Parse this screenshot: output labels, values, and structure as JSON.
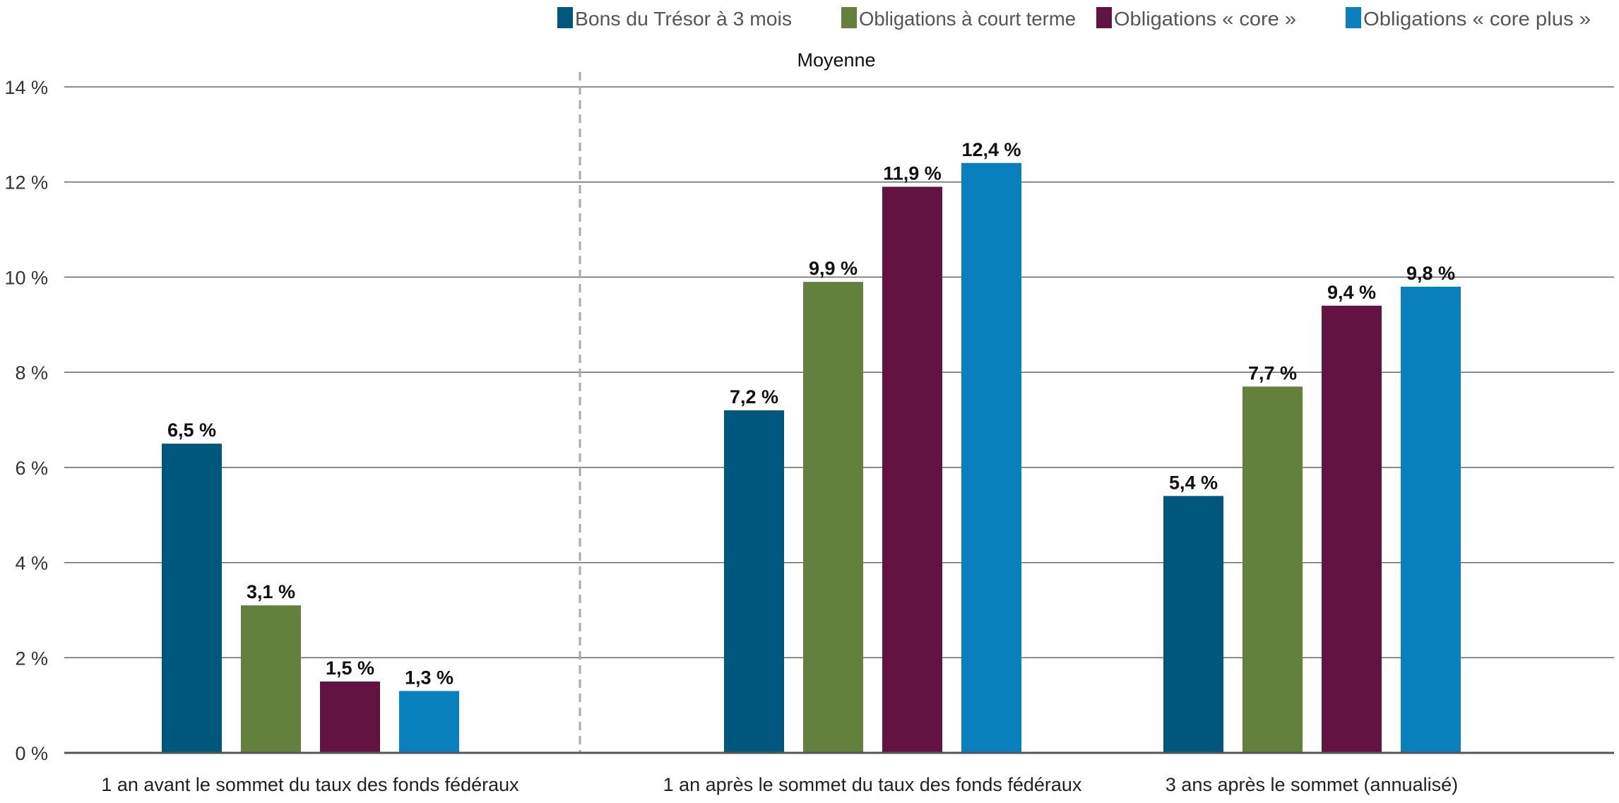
{
  "chart_data": {
    "type": "bar",
    "annotation": "Moyenne",
    "categories": [
      "1 an avant le sommet du taux des fonds fédéraux",
      "1 an après le sommet du taux des fonds fédéraux",
      "3 ans après le sommet (annualisé)"
    ],
    "series": [
      {
        "name": "Bons du Trésor à 3 mois",
        "color": "#00577D",
        "values": [
          6.5,
          7.2,
          5.4
        ],
        "labels": [
          "6,5 %",
          "7,2 %",
          "5,4 %"
        ]
      },
      {
        "name": "Obligations à court terme",
        "color": "#63803C",
        "values": [
          3.1,
          9.9,
          7.7
        ],
        "labels": [
          "3,1 %",
          "9,9 %",
          "7,7 %"
        ]
      },
      {
        "name": "Obligations « core »",
        "color": "#621342",
        "values": [
          1.5,
          11.9,
          9.4
        ],
        "labels": [
          "1,5 %",
          "11,9 %",
          "9,4 %"
        ]
      },
      {
        "name": "Obligations « core plus »",
        "color": "#0A7FBD",
        "values": [
          1.3,
          12.4,
          9.8
        ],
        "labels": [
          "1,3 %",
          "12,4 %",
          "9,8 %"
        ]
      }
    ],
    "yticks": [
      "0 %",
      "2 %",
      "4 %",
      "6 %",
      "8 %",
      "10 %",
      "12 %",
      "14 %"
    ],
    "ylim": [
      0,
      14
    ],
    "xlabel": "",
    "ylabel": "",
    "grid": true,
    "legend": "top-right",
    "separator": "dashed line after first category"
  }
}
